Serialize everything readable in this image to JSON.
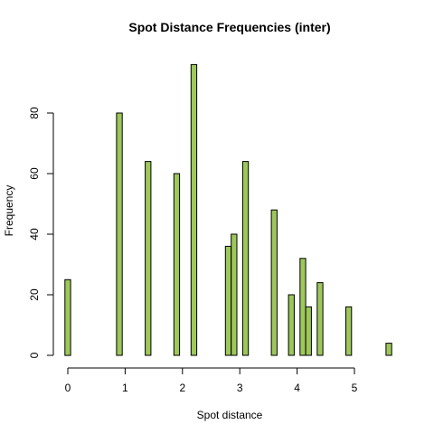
{
  "chart_data": {
    "type": "bar",
    "title": "Spot Distance Frequencies (inter)",
    "xlabel": "Spot distance",
    "ylabel": "Frequency",
    "xlim": [
      0,
      5.7
    ],
    "ylim": [
      0,
      96
    ],
    "x_ticks": [
      0,
      1,
      2,
      3,
      4,
      5
    ],
    "y_ticks": [
      0,
      20,
      40,
      60,
      80
    ],
    "bar_width": 0.1,
    "bar_color": "#9dc75a",
    "x": [
      0.0,
      0.9,
      1.4,
      1.9,
      2.2,
      2.8,
      2.9,
      3.1,
      3.6,
      3.9,
      4.1,
      4.2,
      4.4,
      4.9,
      5.6
    ],
    "values": [
      25,
      80,
      64,
      60,
      96,
      36,
      40,
      64,
      48,
      20,
      32,
      16,
      24,
      16,
      4
    ]
  }
}
